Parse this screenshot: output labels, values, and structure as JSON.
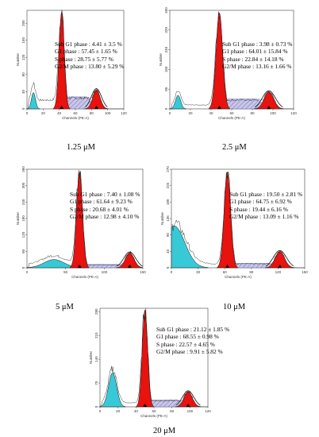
{
  "chart_data": [
    {
      "type": "histogram",
      "caption": "1.25 μM",
      "xlabel": "Channels (PE-A)",
      "ylabel": "Number",
      "xlim": [
        0,
        120
      ],
      "ylim": [
        0,
        230
      ],
      "xticks": [
        0,
        20,
        40,
        60,
        80,
        100,
        120
      ],
      "yticks": [
        0,
        40,
        80,
        120,
        160,
        200
      ],
      "annotations": [
        "Sub G1 phase : 4.41 ± 3.5 %",
        "G1 phase : 57.45 ± 1.65 %",
        "S phase : 28.75 ± 5.77 %",
        "G2/M phase : 13.80 ± 5.29 %"
      ],
      "peaks": [
        {
          "name": "Sub G1",
          "center": 8,
          "width": 2.5,
          "height": 38,
          "color": "cyan"
        },
        {
          "name": "G1",
          "center": 43,
          "width": 3.2,
          "height": 225,
          "color": "red"
        },
        {
          "name": "G2/M",
          "center": 86,
          "width": 4.5,
          "height": 45,
          "color": "red"
        }
      ],
      "s_phase": {
        "start": 43,
        "end": 86,
        "height": 28
      }
    },
    {
      "type": "histogram",
      "caption": "2.5 μM",
      "xlabel": "Channels (PE-A)",
      "ylabel": "Number",
      "xlim": [
        0,
        120
      ],
      "ylim": [
        0,
        400
      ],
      "xticks": [
        0,
        20,
        40,
        60,
        80,
        100,
        120
      ],
      "yticks": [
        0,
        80,
        160,
        240,
        320,
        400
      ],
      "annotations": [
        "Sub G1 phase : 3.98 ± 0.73 %",
        "G1 phase : 64.01 ± 15.84 %",
        "S phase : 22.84 ± 14.18 %",
        "G2/M phase : 13.16 ± 1.66 %"
      ],
      "peaks": [
        {
          "name": "Sub G1",
          "center": 8,
          "width": 2.5,
          "height": 55,
          "color": "cyan"
        },
        {
          "name": "G1",
          "center": 48,
          "width": 3.2,
          "height": 390,
          "color": "red"
        },
        {
          "name": "G2/M",
          "center": 96,
          "width": 4.5,
          "height": 70,
          "color": "red"
        }
      ],
      "s_phase": {
        "start": 48,
        "end": 96,
        "height": 40
      }
    },
    {
      "type": "histogram",
      "caption": "5 μM",
      "xlabel": "Channels (PE-A)",
      "ylabel": "Number",
      "xlim": [
        0,
        150
      ],
      "ylim": [
        0,
        360
      ],
      "xticks": [
        0,
        50,
        100,
        150
      ],
      "yticks": [
        0,
        60,
        120,
        180,
        240,
        300,
        360
      ],
      "annotations": [
        "Sub G1 phase : 7.40 ± 1.08 %",
        "G1 phase : 61.64 ± 9.23 %",
        "S phase : 20.68 ± 4.01 %",
        "G2/M phase : 12.98 ± 4.10 %"
      ],
      "peaks": [
        {
          "name": "Sub G1",
          "center": 35,
          "width": 13,
          "height": 30,
          "color": "cyan"
        },
        {
          "name": "G1",
          "center": 68,
          "width": 3.8,
          "height": 350,
          "color": "red"
        },
        {
          "name": "G2/M",
          "center": 133,
          "width": 5.5,
          "height": 55,
          "color": "red"
        }
      ],
      "s_phase": {
        "start": 68,
        "end": 133,
        "height": 12
      }
    },
    {
      "type": "histogram",
      "caption": "10 μM",
      "xlabel": "Channels (PE-A)",
      "ylabel": "Number",
      "xlim": [
        0,
        150
      ],
      "ylim": [
        0,
        270
      ],
      "xticks": [
        0,
        30,
        60,
        90,
        120,
        150
      ],
      "yticks": [
        0,
        45,
        90,
        135,
        180,
        225,
        270
      ],
      "annotations": [
        "Sub G1 phase : 19.50 ± 2.81 %",
        "G1 phase : 64.75 ± 6.92 %",
        "S phase : 19.44 ± 6.16 %",
        "G2/M phase : 13.09 ± 1.16 %"
      ],
      "peaks": [
        {
          "name": "Sub G1",
          "center": 3,
          "width": 12,
          "height": 115,
          "color": "cyan"
        },
        {
          "name": "G1",
          "center": 63,
          "width": 3.6,
          "height": 262,
          "color": "red"
        },
        {
          "name": "G2/M",
          "center": 122,
          "width": 5.2,
          "height": 45,
          "color": "red"
        }
      ],
      "s_phase": {
        "start": 63,
        "end": 122,
        "height": 12
      }
    },
    {
      "type": "histogram",
      "caption": "20 μM",
      "xlabel": "Channels (PE-A)",
      "ylabel": "Number",
      "xlim": [
        0,
        120
      ],
      "ylim": [
        0,
        290
      ],
      "xticks": [
        0,
        20,
        40,
        60,
        80,
        100,
        120
      ],
      "yticks": [
        0,
        70,
        140,
        210,
        280
      ],
      "annotations": [
        "Sub G1 phase : 21.12 ± 1.85 %",
        "G1 phase : 68.55 ± 0.98 %",
        "S phase : 22.57 ± 4.65 %",
        "G2/M phase : 9.91 ± 5.82 %"
      ],
      "peaks": [
        {
          "name": "Sub G1",
          "center": 14,
          "width": 4.5,
          "height": 100,
          "color": "cyan"
        },
        {
          "name": "G1",
          "center": 50,
          "width": 3,
          "height": 285,
          "color": "red"
        },
        {
          "name": "G2/M",
          "center": 98,
          "width": 4.5,
          "height": 45,
          "color": "red"
        }
      ],
      "s_phase": {
        "start": 50,
        "end": 98,
        "height": 20
      }
    }
  ],
  "colors": {
    "subg1": "#38c9d6",
    "phase": "#e8120e",
    "s_phase_fill": "#c9c6e8",
    "s_phase_hatch": "#4a4fa0"
  }
}
